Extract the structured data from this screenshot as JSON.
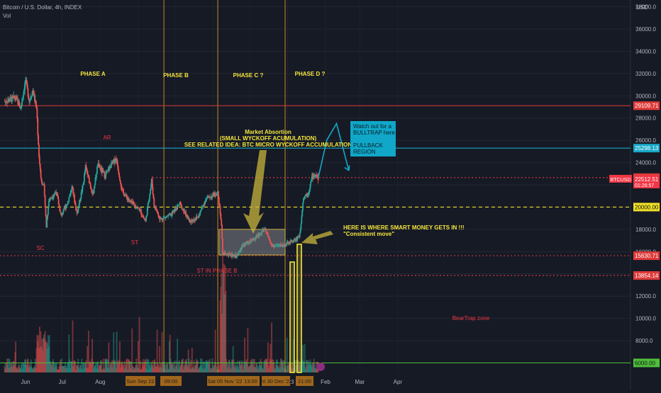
{
  "header": {
    "symbol_line": "Bitcoin / U.S. Dollar, 4h, INDEX",
    "volume_label": "Vol",
    "currency": "USD"
  },
  "chart_data": {
    "type": "candlestick",
    "title": "Bitcoin / U.S. Dollar, 4h, INDEX",
    "ylabel": "USD",
    "ylim": [
      5000,
      40000
    ],
    "y_ticks": [
      6000,
      8000,
      10000,
      12000,
      14000,
      16000,
      18000,
      20000,
      22000,
      24000,
      26000,
      28000,
      30000,
      32000,
      34000,
      36000,
      38000
    ],
    "x_ticks": [
      "Jun",
      "Jul",
      "Aug",
      "Sep",
      "Oct",
      "Nov",
      "Dec",
      "2023",
      "Feb",
      "Mar",
      "Apr"
    ],
    "x_tick_dates": [
      "2022-06-01",
      "2022-07-01",
      "2022-08-01",
      "2022-09-01",
      "2022-10-01",
      "2022-11-01",
      "2022-12-01",
      "2023-01-01",
      "2023-02-01",
      "2023-03-01",
      "2023-04-01"
    ],
    "price_path": [
      [
        "2022-05-15",
        29500
      ],
      [
        "2022-05-24",
        29800
      ],
      [
        "2022-05-28",
        28900
      ],
      [
        "2022-06-01",
        31400
      ],
      [
        "2022-06-04",
        29600
      ],
      [
        "2022-06-07",
        30500
      ],
      [
        "2022-06-10",
        28800
      ],
      [
        "2022-06-12",
        24500
      ],
      [
        "2022-06-14",
        22300
      ],
      [
        "2022-06-16",
        21800
      ],
      [
        "2022-06-18",
        18300
      ],
      [
        "2022-06-20",
        20600
      ],
      [
        "2022-06-26",
        21400
      ],
      [
        "2022-06-30",
        19200
      ],
      [
        "2022-07-05",
        20300
      ],
      [
        "2022-07-09",
        21800
      ],
      [
        "2022-07-13",
        19400
      ],
      [
        "2022-07-18",
        22000
      ],
      [
        "2022-07-20",
        23600
      ],
      [
        "2022-07-26",
        21100
      ],
      [
        "2022-07-30",
        23800
      ],
      [
        "2022-08-05",
        22800
      ],
      [
        "2022-08-10",
        23800
      ],
      [
        "2022-08-14",
        24400
      ],
      [
        "2022-08-19",
        21400
      ],
      [
        "2022-08-26",
        20400
      ],
      [
        "2022-09-02",
        19800
      ],
      [
        "2022-09-07",
        18700
      ],
      [
        "2022-09-12",
        22400
      ],
      [
        "2022-09-14",
        20200
      ],
      [
        "2022-09-19",
        18900
      ],
      [
        "2022-09-28",
        19300
      ],
      [
        "2022-10-05",
        20300
      ],
      [
        "2022-10-13",
        18700
      ],
      [
        "2022-10-20",
        19100
      ],
      [
        "2022-10-26",
        20700
      ],
      [
        "2022-11-05",
        21300
      ],
      [
        "2022-11-08",
        18500
      ],
      [
        "2022-11-09",
        15800
      ],
      [
        "2022-11-21",
        15600
      ],
      [
        "2022-11-25",
        16500
      ],
      [
        "2022-12-05",
        17200
      ],
      [
        "2022-12-14",
        18000
      ],
      [
        "2022-12-19",
        16500
      ],
      [
        "2022-12-30",
        16600
      ],
      [
        "2023-01-08",
        17100
      ],
      [
        "2023-01-11",
        17500
      ],
      [
        "2023-01-13",
        19900
      ],
      [
        "2023-01-14",
        20900
      ],
      [
        "2023-01-18",
        21300
      ],
      [
        "2023-01-21",
        22700
      ],
      [
        "2023-01-24",
        22900
      ],
      [
        "2023-01-26",
        22600
      ]
    ],
    "projection_path": [
      [
        "2023-01-26",
        22600
      ],
      [
        "2023-02-02",
        26000
      ],
      [
        "2023-02-10",
        27500
      ],
      [
        "2023-02-20",
        23300
      ]
    ],
    "horizontal_levels": [
      {
        "price": 29109.71,
        "label": "29109.71",
        "color": "#e03a3a",
        "style": "solid"
      },
      {
        "price": 25298.13,
        "label": "25298.13",
        "color": "#16a8c8",
        "style": "solid"
      },
      {
        "price": 22645.29,
        "label": "22645.29",
        "color": "#e03a3a",
        "style": "dotted"
      },
      {
        "price": 20000.0,
        "label": "20000.00",
        "color": "#f0e027",
        "style": "dashed"
      },
      {
        "price": 15630.71,
        "label": "15630.71",
        "color": "#e03a3a",
        "style": "dotted"
      },
      {
        "price": 13854.14,
        "label": "13854.14",
        "color": "#e03a3a",
        "style": "dotted"
      },
      {
        "price": 6000.0,
        "label": "6000.00",
        "color": "#4fbf3a",
        "style": "solid"
      }
    ],
    "current_price": {
      "symbol": "BTCUSD",
      "price": 22512.51,
      "label": "22512.51",
      "countdown": "01:26:57"
    },
    "phase_lines": [
      "2022-09-22",
      "2022-11-05",
      "2022-12-30"
    ],
    "bottom_tags": [
      "Sun Sep 22",
      "09:00",
      "Sat 05 Nov '22",
      "13:00",
      "Fri 30 Dec '22",
      "21:00"
    ],
    "accumulation_box": {
      "x0": "2022-11-06",
      "x1": "2022-12-30",
      "y0": 15700,
      "y1": 18000
    },
    "annotations": {
      "phase_a": "PHASE A",
      "phase_b": "PHASE B",
      "phase_c": "PHASE C ?",
      "phase_d": "PHASE D ?",
      "ar": "AR",
      "sc": "SC",
      "st": "ST",
      "st_phase_b": "ST IN PHASE B",
      "absorption_1": "Market Absortion",
      "absorption_2": "(SMALL WYCKOFF ACUMULATION)",
      "absorption_3": "SEE RELATED IDEA: BTC MICRO WYCKOFF ACCUMULATION",
      "smart_money_1": "HERE IS WHERE SMART MONEY GETS IN !!!",
      "smart_money_2": "\"Consistent move\"",
      "beartrap": "BearTrap zone",
      "callout_1": "Watch out for a",
      "callout_2": "BULLTRAP here",
      "callout_3": "PULLBACK",
      "callout_4": "REGION"
    },
    "colors": {
      "up": "#26a69a",
      "down": "#ef5350",
      "annotation_yellow": "#f5e63b",
      "annotation_red": "#f23645",
      "callout": "#10a7c8"
    }
  }
}
